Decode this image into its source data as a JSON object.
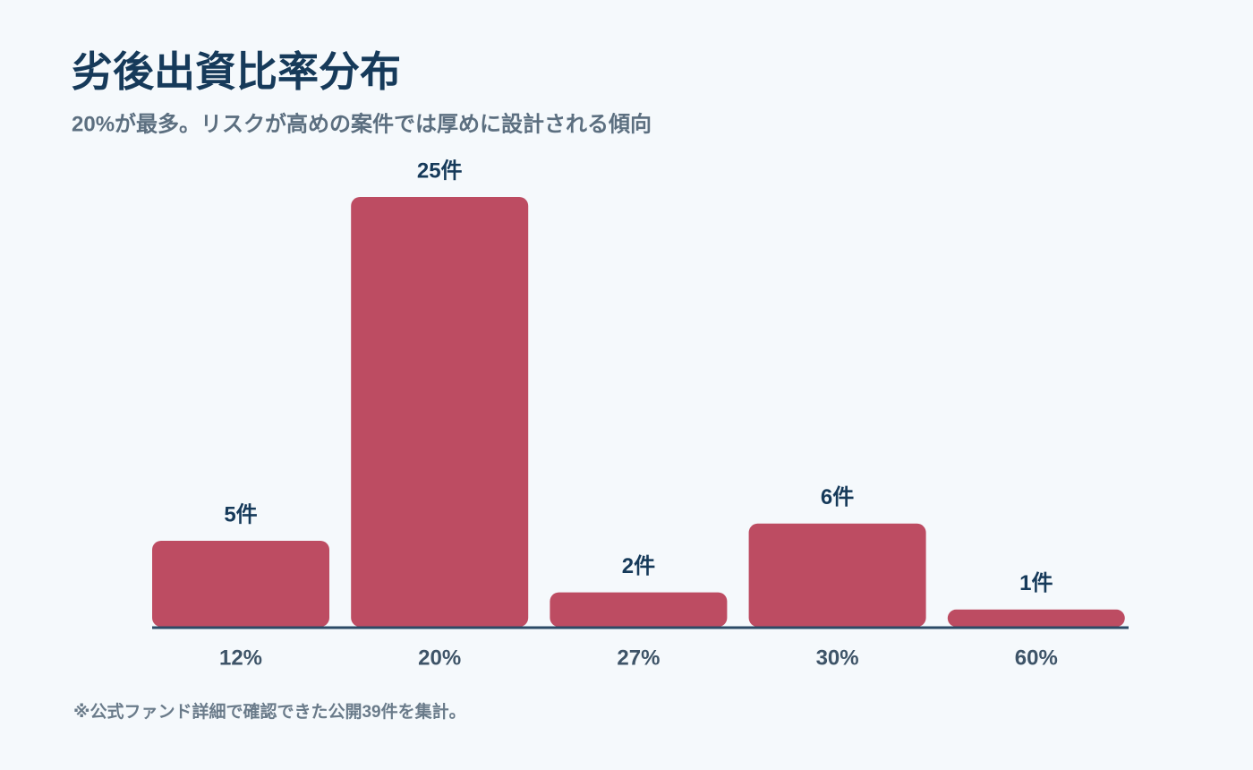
{
  "chart_data": {
    "type": "bar",
    "title": "劣後出資比率分布",
    "subtitle": "20%が最多。リスクが高めの案件では厚めに設計される傾向",
    "note": "※公式ファンド詳細で確認できた公開39件を集計。",
    "categories": [
      "12%",
      "20%",
      "27%",
      "30%",
      "60%"
    ],
    "values": [
      5,
      25,
      2,
      6,
      1
    ],
    "value_labels": [
      "5件",
      "25件",
      "2件",
      "6件",
      "1件"
    ],
    "color": "#bd4c62"
  }
}
